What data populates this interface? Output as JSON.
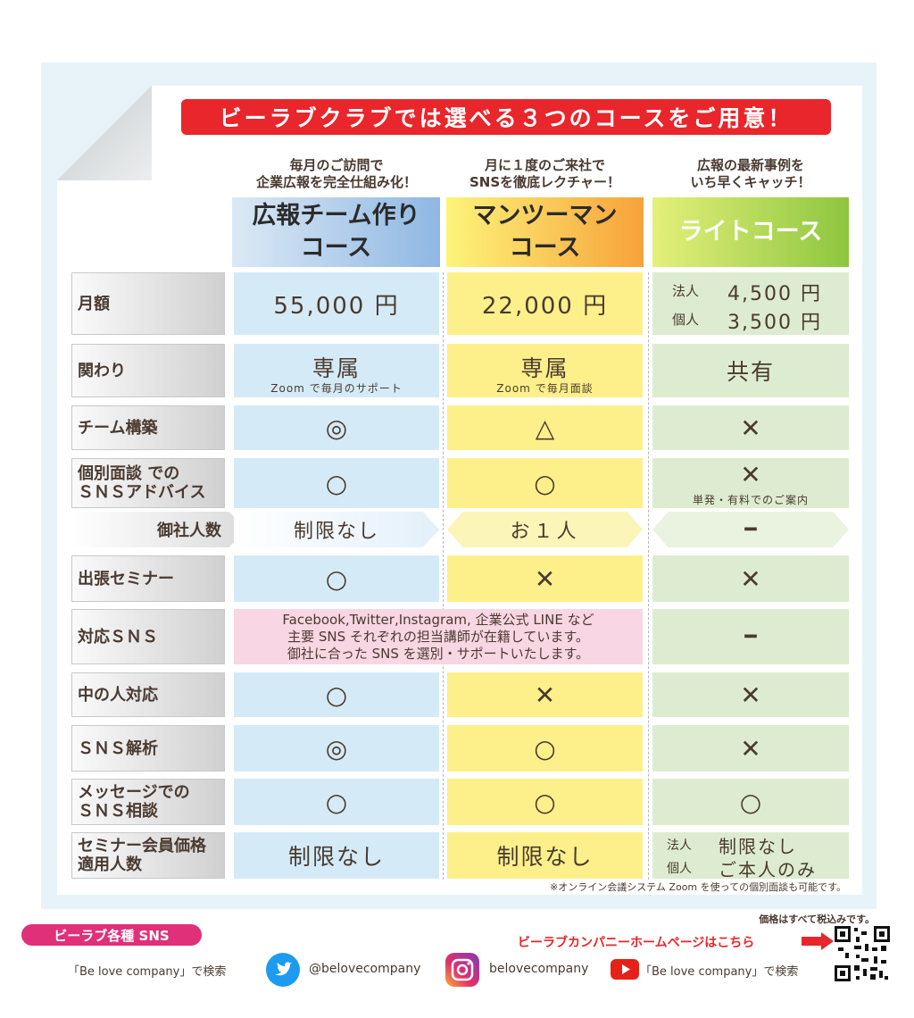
{
  "banner": "ビーラブクラブでは選べる３つのコースをご用意！",
  "taglines": [
    "毎月のご訪問で\n 企業広報を完全仕組み化！",
    "月に１度のご来社で\n SNSを徹底レクチャー！",
    "広報の最新事例を\n いち早くキャッチ！"
  ],
  "plans": [
    "広報チーム作り\n コース",
    "マンツーマン\n コース",
    "ライトコース"
  ],
  "rows": {
    "monthly": {
      "label": "月額",
      "p1": "55,000 円",
      "p2": "22,000 円",
      "p3a_k": "法人",
      "p3a_v": "4,500 円",
      "p3b_k": "個人",
      "p3b_v": "3,500 円"
    },
    "involve": {
      "label": "関わり",
      "p1": "専属",
      "p1s": "Zoom で毎月のサポート",
      "p2": "専属",
      "p2s": "Zoom で毎月面談",
      "p3": "共有"
    },
    "team": {
      "label": "チーム構築",
      "p1": "◎",
      "p2": "△",
      "p3": "✕"
    },
    "indiv": {
      "label": "個別面談 での\nＳＮＳアドバイス",
      "p1": "○",
      "p2": "○",
      "p3": "✕",
      "p3s": "単発・有料でのご案内"
    },
    "people": {
      "label": "御社人数",
      "p1": "制限なし",
      "p2": "お１人",
      "p3": "━"
    },
    "seminar": {
      "label": "出張セミナー",
      "p1": "○",
      "p2": "✕",
      "p3": "✕"
    },
    "sns": {
      "label": "対応ＳＮＳ",
      "text": "Facebook,Twitter,Instagram, 企業公式 LINE など\n主要 SNS それぞれの担当講師が在籍しています。\n御社に合った SNS を選別・サポートいたします。",
      "p3": "━"
    },
    "inside": {
      "label": "中の人対応",
      "p1": "○",
      "p2": "✕",
      "p3": "✕"
    },
    "analysis": {
      "label": "ＳＮＳ解析",
      "p1": "◎",
      "p2": "○",
      "p3": "✕"
    },
    "message": {
      "label": "メッセージでの\nＳＮＳ相談",
      "p1": "○",
      "p2": "○",
      "p3": "○"
    },
    "member": {
      "label": "セミナー会員価格\n適用人数",
      "p1": "制限なし",
      "p2": "制限なし",
      "p3a_k": "法人",
      "p3a_v": "制限なし",
      "p3b_k": "個人",
      "p3b_v": "ご本人のみ"
    }
  },
  "note": "※オンライン会議システム Zoom を使っての個別面談も可能です。",
  "footer": {
    "price_note": "価格はすべて税込みです。",
    "sns_badge": "ビーラブ各種 SNS",
    "homepage": "ビーラブカンパニーホームページはこちら",
    "search1": "「Be love company」で検索",
    "twitter": "@belovecompany",
    "instagram": "belovecompany",
    "search2": "「Be love company」で検索"
  },
  "colors": {
    "red": "#e8262b",
    "pink": "#e0307a",
    "twitter": "#1d9bf0",
    "youtube": "#e62117"
  }
}
